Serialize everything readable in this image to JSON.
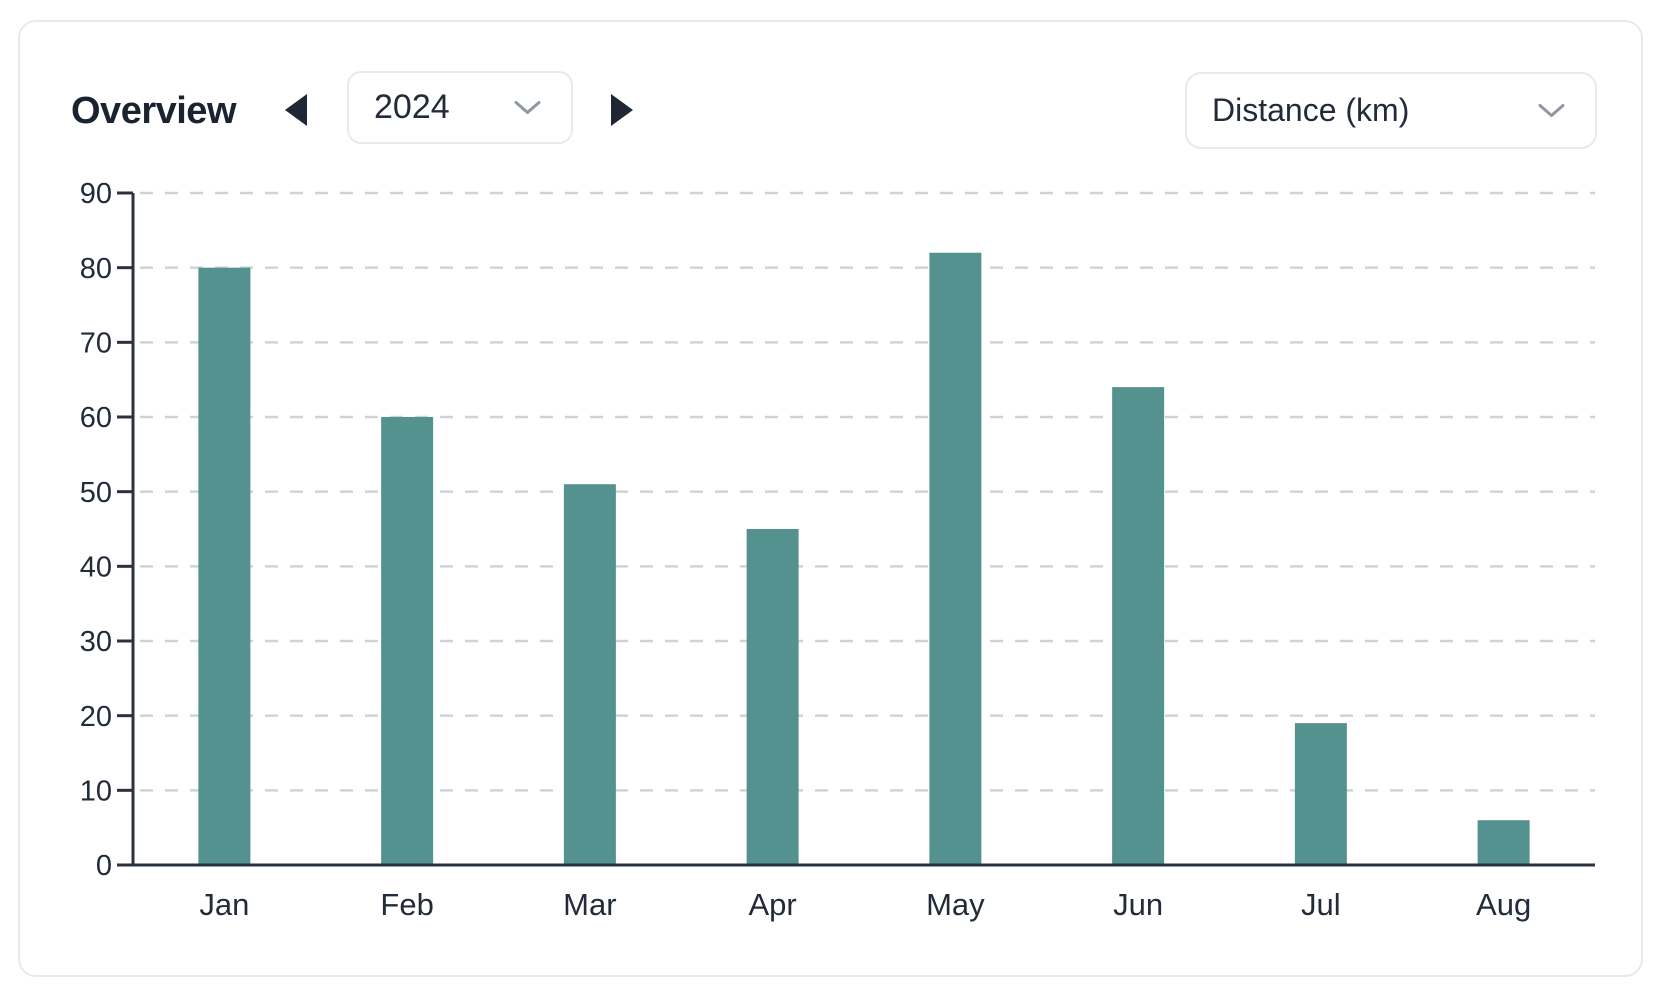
{
  "header": {
    "title": "Overview",
    "year_selector": {
      "value": "2024",
      "prev_icon": "left-filled-triangle",
      "next_icon": "right-filled-triangle",
      "dropdown_icon": "chevron-down"
    },
    "metric_selector": {
      "value": "Distance (km)",
      "dropdown_icon": "chevron-down"
    }
  },
  "colors": {
    "bar": "#53928E",
    "title_text": "#1b2330",
    "axis_text": "#212b3a",
    "axis_line": "#2a3240",
    "gridline": "#cfd3d9",
    "card_border": "#e7e9ee",
    "chevron": "#8f97a3",
    "arrow": "#1f2734"
  },
  "chart_data": {
    "type": "bar",
    "title": "",
    "categories": [
      "Jan",
      "Feb",
      "Mar",
      "Apr",
      "May",
      "Jun",
      "Jul",
      "Aug"
    ],
    "values": [
      80,
      60,
      51,
      45,
      82,
      64,
      19,
      6
    ],
    "series_name": "Distance (km)",
    "xlabel": "",
    "ylabel": "",
    "ylim": [
      0,
      90
    ],
    "ytick_step": 10,
    "yticks": [
      0,
      10,
      20,
      30,
      40,
      50,
      60,
      70,
      80,
      90
    ],
    "grid": "horizontal-dashed",
    "legend": "none"
  }
}
